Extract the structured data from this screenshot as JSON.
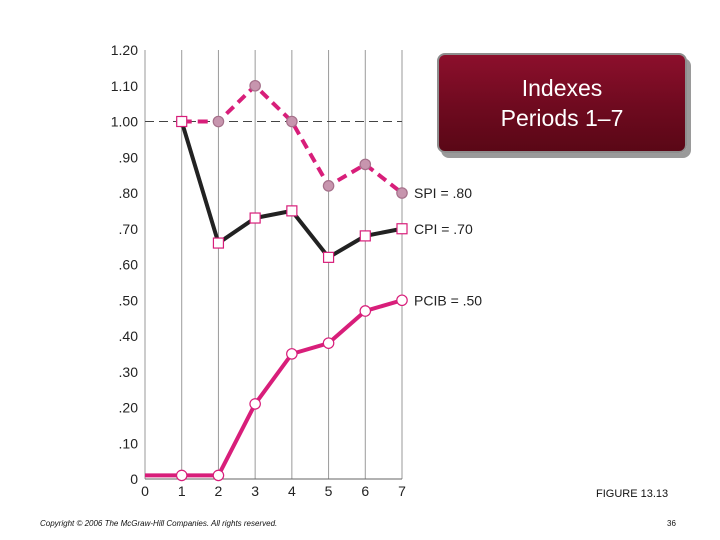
{
  "chart_data": {
    "type": "line",
    "title": "Indexes",
    "subtitle": "Periods 1–7",
    "x": [
      1,
      2,
      3,
      4,
      5,
      6,
      7
    ],
    "x_ticks": [
      "0",
      "1",
      "2",
      "3",
      "4",
      "5",
      "6",
      "7"
    ],
    "y_ticks": [
      "0",
      ".10",
      ".20",
      ".30",
      ".40",
      ".50",
      ".60",
      ".70",
      ".80",
      ".90",
      "1.00",
      "1.10",
      "1.20"
    ],
    "xlim": [
      0,
      7
    ],
    "ylim": [
      0,
      1.2
    ],
    "grid": "vertical",
    "reference_line": 1.0,
    "series": [
      {
        "name": "SPI",
        "label": "SPI = .80",
        "values": [
          1.0,
          1.0,
          1.1,
          1.0,
          0.82,
          0.88,
          0.8
        ],
        "color": "#d81e7a",
        "marker": "circle",
        "dashed": true
      },
      {
        "name": "CPI",
        "label": "CPI = .70",
        "values": [
          1.0,
          0.66,
          0.73,
          0.75,
          0.62,
          0.68,
          0.7
        ],
        "color": "#222222",
        "marker": "square",
        "dashed": false
      },
      {
        "name": "PCIB",
        "label": "PCIB = .50",
        "values": [
          0.01,
          0.01,
          0.21,
          0.35,
          0.38,
          0.47,
          0.5
        ],
        "color": "#d81e7a",
        "marker": "circle",
        "dashed": false,
        "extends_to_x0": 0.01
      }
    ]
  },
  "figure_label": "FIGURE 13.13",
  "copyright": "Copyright © 2006 The McGraw-Hill Companies. All rights reserved.",
  "page_number": "36"
}
